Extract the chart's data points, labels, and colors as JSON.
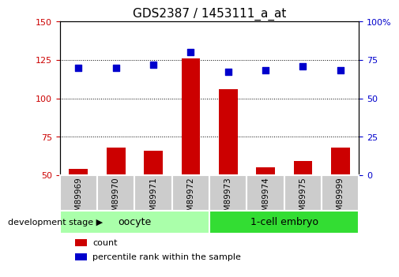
{
  "title": "GDS2387 / 1453111_a_at",
  "samples": [
    "GSM89969",
    "GSM89970",
    "GSM89971",
    "GSM89972",
    "GSM89973",
    "GSM89974",
    "GSM89975",
    "GSM89999"
  ],
  "counts": [
    54,
    68,
    66,
    126,
    106,
    55,
    59,
    68
  ],
  "percentiles": [
    70,
    70,
    72,
    80,
    67,
    68,
    71,
    68
  ],
  "ylim_left": [
    50,
    150
  ],
  "ylim_right": [
    0,
    100
  ],
  "yticks_left": [
    50,
    75,
    100,
    125,
    150
  ],
  "yticks_right": [
    0,
    25,
    50,
    75,
    100
  ],
  "groups": [
    {
      "label": "oocyte",
      "count": 4,
      "color": "#AAFFAA"
    },
    {
      "label": "1-cell embryo",
      "count": 4,
      "color": "#33DD33"
    }
  ],
  "bar_color": "#CC0000",
  "dot_color": "#0000CC",
  "bar_width": 0.5,
  "dot_size": 40,
  "background_color": "#ffffff",
  "tick_label_color_left": "#CC0000",
  "tick_label_color_right": "#0000CC",
  "sample_box_color": "#CCCCCC",
  "dev_stage_label": "development stage",
  "legend_items": [
    {
      "label": "count",
      "color": "#CC0000"
    },
    {
      "label": "percentile rank within the sample",
      "color": "#0000CC"
    }
  ],
  "title_fontsize": 11,
  "tick_fontsize": 8,
  "sample_fontsize": 7.5,
  "group_fontsize": 9,
  "legend_fontsize": 8,
  "dev_stage_fontsize": 8
}
